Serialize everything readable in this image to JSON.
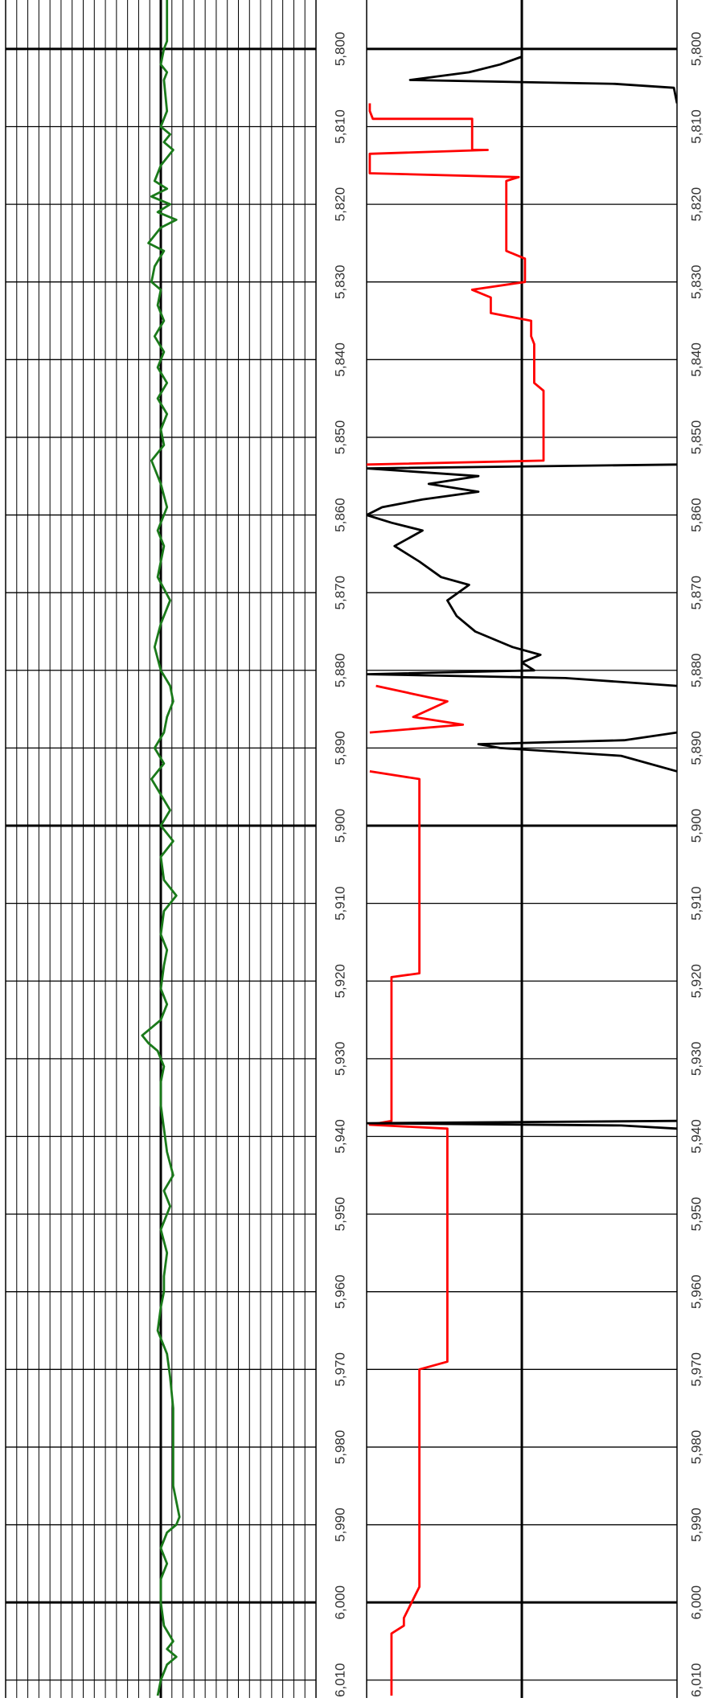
{
  "chart_data": {
    "type": "line",
    "ylim": [
      5793.7,
      6012.3
    ],
    "yticks": [
      {
        "value": 5800,
        "label": "5,800"
      },
      {
        "value": 5810,
        "label": "5,810"
      },
      {
        "value": 5820,
        "label": "5,820"
      },
      {
        "value": 5830,
        "label": "5,830"
      },
      {
        "value": 5840,
        "label": "5,840"
      },
      {
        "value": 5850,
        "label": "5,850"
      },
      {
        "value": 5860,
        "label": "5,860"
      },
      {
        "value": 5870,
        "label": "5,870"
      },
      {
        "value": 5880,
        "label": "5,880"
      },
      {
        "value": 5890,
        "label": "5,890"
      },
      {
        "value": 5900,
        "label": "5,900"
      },
      {
        "value": 5910,
        "label": "5,910"
      },
      {
        "value": 5920,
        "label": "5,920"
      },
      {
        "value": 5930,
        "label": "5,930"
      },
      {
        "value": 5940,
        "label": "5,940"
      },
      {
        "value": 5950,
        "label": "5,950"
      },
      {
        "value": 5960,
        "label": "5,960"
      },
      {
        "value": 5970,
        "label": "5,970"
      },
      {
        "value": 5980,
        "label": "5,980"
      },
      {
        "value": 5990,
        "label": "5,990"
      },
      {
        "value": 6000,
        "label": "6,000"
      },
      {
        "value": 6010,
        "label": "6,010"
      }
    ],
    "tracks": [
      {
        "xlim": [
          0,
          100
        ],
        "grid": true,
        "series": [
          {
            "color": "#1a7a1a",
            "x": [
              5793,
              5799,
              5800,
              5802,
              5803,
              5804,
              5808,
              5810,
              5811,
              5812,
              5813,
              5815,
              5817,
              5818,
              5819,
              5820,
              5821,
              5822,
              5823,
              5825,
              5826,
              5828,
              5830,
              5831,
              5833,
              5835,
              5837,
              5839,
              5841,
              5843,
              5845,
              5847,
              5849,
              5851,
              5853,
              5856,
              5859,
              5862,
              5864,
              5866,
              5868,
              5871,
              5874,
              5877,
              5880,
              5882,
              5884,
              5886,
              5888,
              5890,
              5892,
              5894,
              5896,
              5898,
              5900,
              5902,
              5904,
              5907,
              5909,
              5911,
              5914,
              5916,
              5918,
              5921,
              5923,
              5925,
              5927,
              5928,
              5929,
              5931,
              5933,
              5936,
              5939,
              5942,
              5945,
              5947,
              5949,
              5952,
              5955,
              5958,
              5960,
              5962,
              5965,
              5968,
              5971,
              5975,
              5980,
              5985,
              5989,
              5990,
              5991,
              5993,
              5995,
              5997,
              6000,
              6003,
              6005,
              6006,
              6007,
              6008,
              6010,
              6012
            ],
            "values": [
              52,
              52,
              51,
              50,
              52,
              51,
              52,
              50,
              53,
              51,
              54,
              50,
              48,
              52,
              47,
              53,
              49,
              55,
              50,
              46,
              51,
              48,
              47,
              50,
              49,
              51,
              48,
              51,
              49,
              52,
              49,
              52,
              50,
              51,
              47,
              50,
              52,
              49,
              51,
              50,
              49,
              53,
              50,
              48,
              50,
              53,
              54,
              52,
              51,
              48,
              51,
              47,
              50,
              53,
              50,
              54,
              50,
              51,
              55,
              51,
              50,
              52,
              51,
              50,
              52,
              50,
              44,
              46,
              49,
              51,
              50,
              50,
              51,
              52,
              54,
              51,
              53,
              50,
              52,
              51,
              51,
              50,
              49,
              52,
              53,
              54,
              54,
              54,
              56,
              55,
              52,
              50,
              52,
              50,
              50,
              51,
              54,
              52,
              55,
              52,
              50,
              49
            ]
          }
        ]
      },
      {
        "xlim": [
          0,
          100
        ],
        "grid": false,
        "series": [
          {
            "color": "#ff0000",
            "x": [
              5807,
              5808,
              5809,
              5809,
              5813,
              5813,
              5813.5,
              5816,
              5816.5,
              5817,
              5826,
              5827,
              5830,
              5831,
              5832,
              5834,
              5835,
              5837,
              5838,
              5843,
              5844,
              5853,
              5853.5,
              null,
              5882,
              5884,
              5886,
              5887,
              5888,
              null,
              5893,
              5894,
              5919,
              5919.5,
              5938,
              5938.5,
              5939,
              5969,
              5970,
              5998,
              6002,
              6003,
              6004,
              6012
            ],
            "values": [
              1,
              1,
              2,
              34,
              34,
              39,
              1,
              1,
              49,
              45,
              45,
              51,
              51,
              34,
              40,
              40,
              53,
              53,
              54,
              54,
              57,
              57,
              0,
              null,
              3,
              26,
              15,
              31,
              1,
              null,
              1,
              17,
              17,
              8,
              8,
              1,
              26,
              26,
              17,
              17,
              12,
              12,
              8,
              8
            ]
          },
          {
            "color": "#000000",
            "x": [
              5793,
              5801,
              5802,
              5803,
              5804,
              5804.5,
              5805,
              5807,
              null,
              5853.5,
              5854,
              5855,
              5856,
              5857,
              5858,
              5859,
              5860,
              5861,
              5862,
              5864,
              5866,
              5868,
              5869,
              5871,
              5873,
              5875,
              5877,
              5878,
              5879,
              5880,
              5880.5,
              5881,
              5882,
              null,
              5888,
              5889,
              5889.5,
              5890,
              5891,
              5893,
              null,
              5938,
              5938.3,
              5938.6,
              5939
            ],
            "values": [
              50,
              50,
              43,
              33,
              14,
              80,
              99,
              100,
              null,
              100,
              0,
              36,
              20,
              36,
              18,
              5,
              0,
              8,
              18,
              9,
              17,
              24,
              33,
              26,
              29,
              35,
              47,
              56,
              50,
              54,
              0,
              64,
              100,
              null,
              100,
              83,
              36,
              43,
              82,
              100,
              null,
              100,
              0,
              82,
              100
            ]
          }
        ]
      }
    ]
  }
}
